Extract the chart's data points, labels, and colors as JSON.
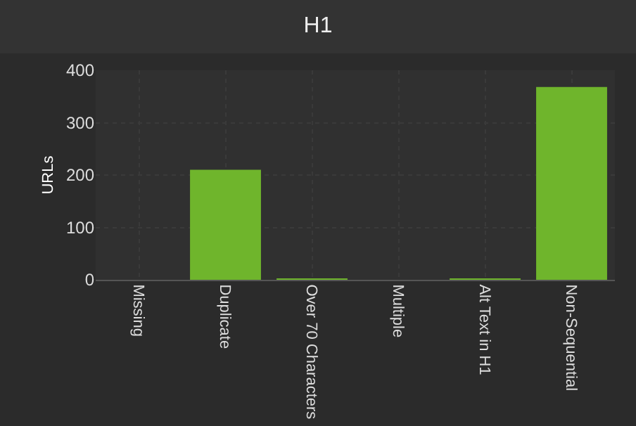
{
  "chart_data": {
    "type": "bar",
    "title": "H1",
    "ylabel": "URLs",
    "categories": [
      "Missing",
      "Duplicate",
      "Over 70 Characters",
      "Multiple",
      "Alt Text in H1",
      "Non-Sequential"
    ],
    "values": [
      0,
      210,
      2,
      0,
      2,
      368
    ],
    "color": "#6fb52c",
    "ylim": [
      0,
      400
    ],
    "yticks": [
      0,
      100,
      200,
      300,
      400
    ],
    "grid": true,
    "legend": false
  }
}
